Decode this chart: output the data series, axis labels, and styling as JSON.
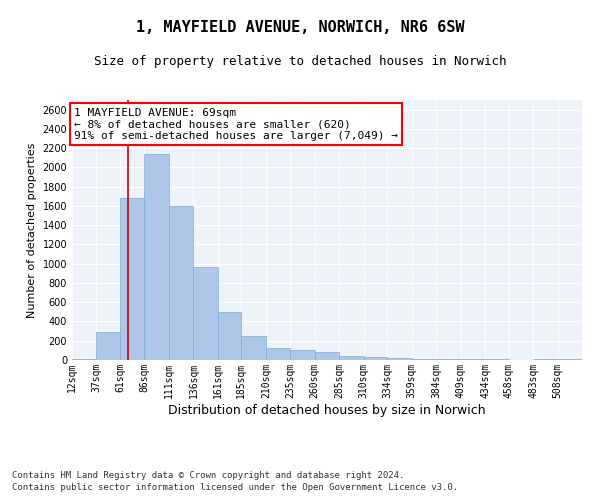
{
  "title": "1, MAYFIELD AVENUE, NORWICH, NR6 6SW",
  "subtitle": "Size of property relative to detached houses in Norwich",
  "xlabel": "Distribution of detached houses by size in Norwich",
  "ylabel": "Number of detached properties",
  "footnote1": "Contains HM Land Registry data © Crown copyright and database right 2024.",
  "footnote2": "Contains public sector information licensed under the Open Government Licence v3.0.",
  "annotation_line1": "1 MAYFIELD AVENUE: 69sqm",
  "annotation_line2": "← 8% of detached houses are smaller (620)",
  "annotation_line3": "91% of semi-detached houses are larger (7,049) →",
  "bar_color": "#aec6e8",
  "bar_edge_color": "#7fadd4",
  "vline_color": "#cc0000",
  "vline_x": 69,
  "bin_edges": [
    12,
    37,
    61,
    86,
    111,
    136,
    161,
    185,
    210,
    235,
    260,
    285,
    310,
    334,
    359,
    384,
    409,
    434,
    458,
    483,
    508,
    533
  ],
  "bar_heights": [
    15,
    290,
    1680,
    2140,
    1595,
    970,
    500,
    245,
    120,
    100,
    80,
    45,
    30,
    20,
    15,
    10,
    15,
    10,
    5,
    10,
    15
  ],
  "tick_labels": [
    "12sqm",
    "37sqm",
    "61sqm",
    "86sqm",
    "111sqm",
    "136sqm",
    "161sqm",
    "185sqm",
    "210sqm",
    "235sqm",
    "260sqm",
    "285sqm",
    "310sqm",
    "334sqm",
    "359sqm",
    "384sqm",
    "409sqm",
    "434sqm",
    "458sqm",
    "483sqm",
    "508sqm"
  ],
  "ylim": [
    0,
    2700
  ],
  "yticks": [
    0,
    200,
    400,
    600,
    800,
    1000,
    1200,
    1400,
    1600,
    1800,
    2000,
    2200,
    2400,
    2600
  ],
  "background_color": "#eef2f9",
  "grid_color": "#ffffff",
  "title_fontsize": 11,
  "subtitle_fontsize": 9,
  "xlabel_fontsize": 9,
  "ylabel_fontsize": 8,
  "tick_fontsize": 7,
  "annotation_fontsize": 8,
  "footnote_fontsize": 6.5
}
